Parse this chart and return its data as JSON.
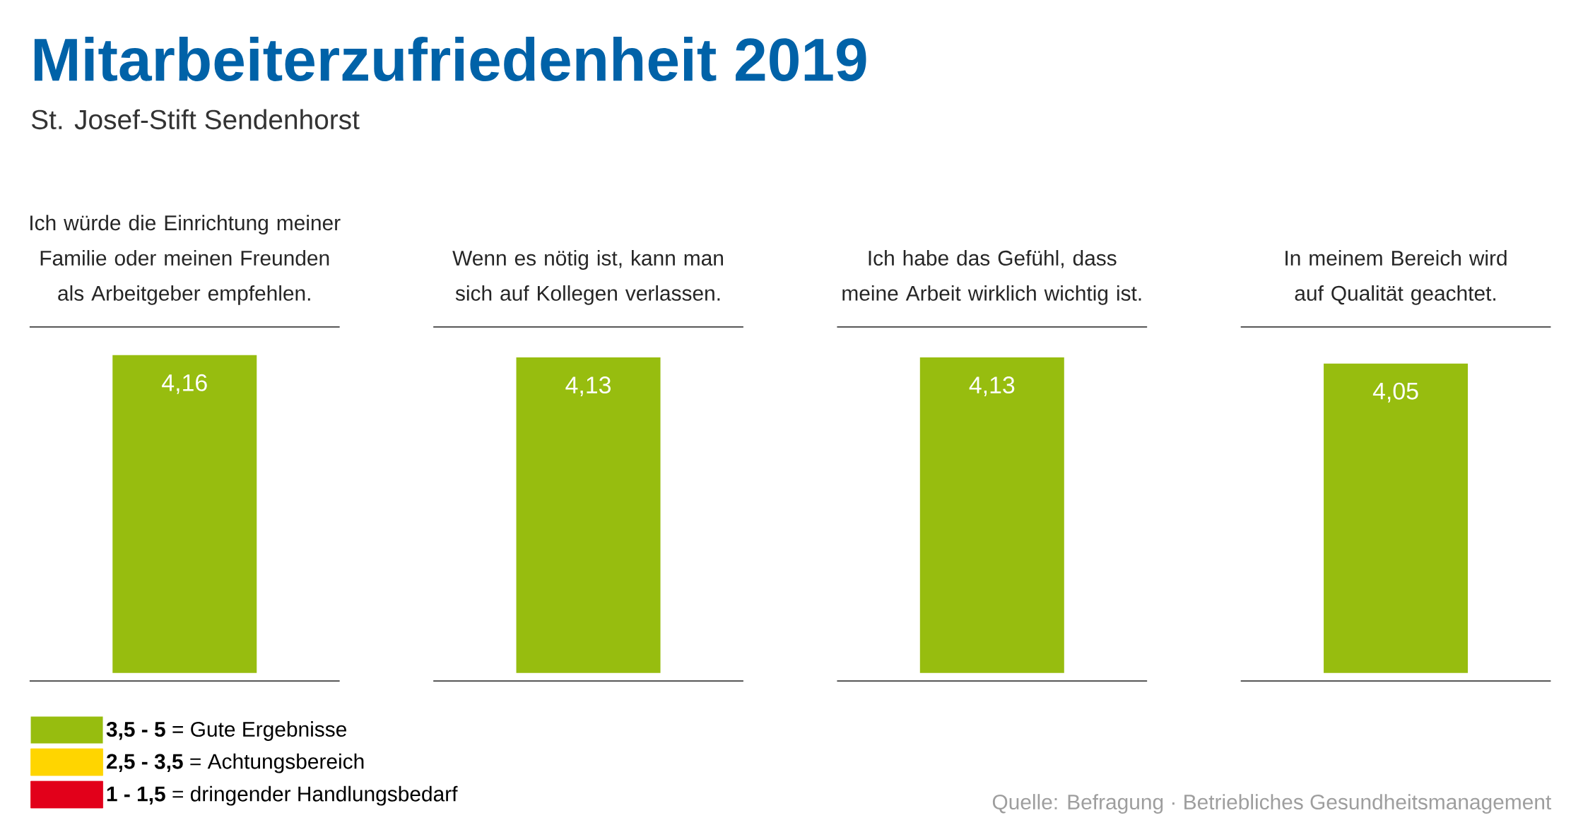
{
  "chart_data": {
    "type": "bar",
    "title": "Mitarbeiterzufriedenheit 2019",
    "subtitle": "St. Josef-Stift Sendenhorst",
    "categories": [
      "Ich würde die Einrichtung meiner Familie oder meinen Freunden als Arbeitgeber empfehlen.",
      "Wenn es nötig ist, kann man sich auf Kollegen verlassen.",
      "Ich habe das Gefühl, dass meine  Arbeit wirklich wichtig ist.",
      "In meinem Bereich wird auf Qualität geachtet."
    ],
    "series": [
      {
        "name": "**3,5 - 5** = Gute Ergebnisse",
        "color": "#97bd0f",
        "values": [
          4.16,
          4.13,
          4.13,
          4.05
        ],
        "value_labels": [
          "4,16",
          "4,13",
          "4,13",
          "4,05"
        ]
      },
      {
        "name": "**2,5 - 3,5** = Achtungsbereich",
        "color": "#ffd500",
        "values": [
          null,
          null,
          null,
          null
        ]
      },
      {
        "name": "**1 - 1,5** = dringender Handlungsbedarf",
        "color": "#e2001a",
        "values": [
          null,
          null,
          null,
          null
        ]
      }
    ],
    "legend": "bottom left",
    "annotations": [
      "Quelle: Befragung · Betriebliches Gesundheitsmanagement"
    ]
  }
}
